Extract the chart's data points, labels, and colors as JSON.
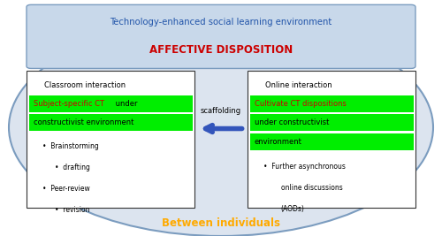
{
  "fig_width": 5.0,
  "fig_height": 2.67,
  "dpi": 100,
  "bg_color": "#ffffff",
  "ellipse_fc": "#dce4ef",
  "ellipse_ec": "#7b9cbf",
  "top_box_fc": "#c8d8ea",
  "top_box_ec": "#7b9cbf",
  "top_text1": "Technology-enhanced social learning environment",
  "top_text2": "AFFECTIVE DISPOSITION",
  "top_text1_color": "#2255aa",
  "top_text2_color": "#cc0000",
  "left_title": "Classroom interaction",
  "right_title": "Online interaction",
  "highlight_bg": "#00ee00",
  "red_text": "#cc0000",
  "arrow_color": "#3355bb",
  "scaffolding": "scaffolding",
  "between_text": "Between individuals",
  "between_color": "#ffaa00",
  "box_ec": "#333333",
  "box_fc": "#ffffff",
  "left_hl_line1_red": "Subject-specific CT",
  "left_hl_line1_black": " under",
  "left_hl_line2": "constructivist environment",
  "right_hl_line1": "Cultivate CT dispositions",
  "right_hl_line2": "under constructivist",
  "right_hl_line3": "environment",
  "bullet1": "Brainstorming",
  "bullet2": "drafting",
  "bullet3": "Peer-review",
  "bullet4": "revision",
  "rbullet1": "Further asynchronous",
  "rbullet2": "online discussions",
  "rbullet3": "(AODs)"
}
